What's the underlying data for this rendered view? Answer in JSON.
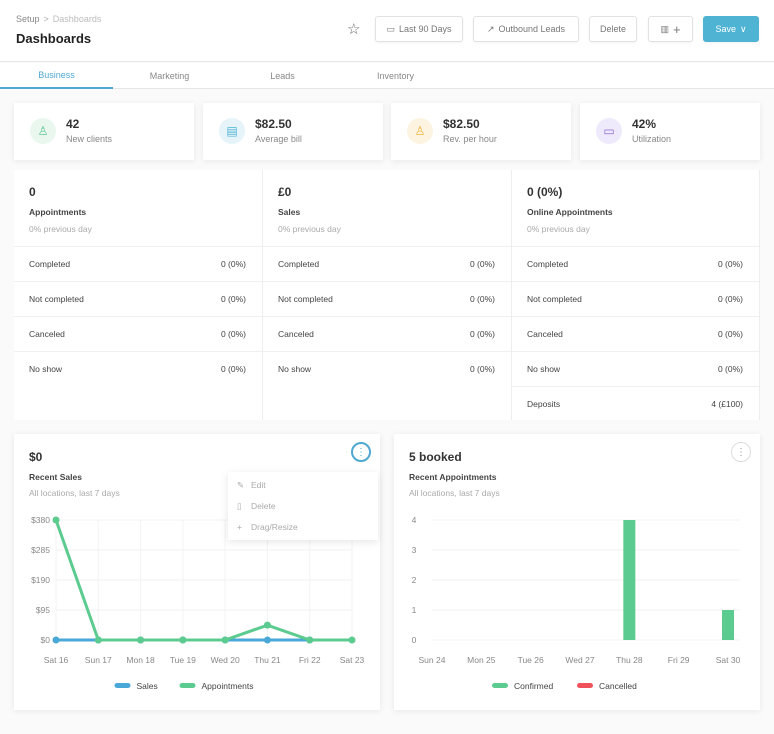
{
  "header": {
    "breadcrumb": [
      "Setup",
      "Dashboards"
    ],
    "title": "Dashboards",
    "buttons": {
      "date_range": "Last 90 Days",
      "outbound": "Outbound Leads",
      "delete": "Delete",
      "save": "Save"
    }
  },
  "tabs": [
    {
      "label": "Business",
      "active": true
    },
    {
      "label": "Marketing"
    },
    {
      "label": "Leads"
    },
    {
      "label": "Inventory"
    }
  ],
  "stats": [
    {
      "value": "42",
      "label": "New clients",
      "icon": "users-icon",
      "color": "#5cc68f",
      "bg": "#e9f7ef"
    },
    {
      "value": "$82.50",
      "label": "Average bill",
      "icon": "receipt-icon",
      "color": "#4fb3d3",
      "bg": "#e6f4fa"
    },
    {
      "value": "$82.50",
      "label": "Rev. per hour",
      "icon": "users-icon",
      "color": "#f0b43c",
      "bg": "#fdf3e1"
    },
    {
      "value": "42%",
      "label": "Utilization",
      "icon": "folder-icon",
      "color": "#8a6fd6",
      "bg": "#efeafb"
    }
  ],
  "summary": [
    {
      "value": "0",
      "label": "Appointments",
      "sub": "0% previous day",
      "rows": [
        [
          "Completed",
          "0 (0%)"
        ],
        [
          "Not completed",
          "0 (0%)"
        ],
        [
          "Canceled",
          "0 (0%)"
        ],
        [
          "No show",
          "0 (0%)"
        ]
      ]
    },
    {
      "value": "£0",
      "label": "Sales",
      "sub": "0% previous day",
      "rows": [
        [
          "Completed",
          "0 (0%)"
        ],
        [
          "Not completed",
          "0 (0%)"
        ],
        [
          "Canceled",
          "0 (0%)"
        ],
        [
          "No show",
          "0 (0%)"
        ]
      ]
    },
    {
      "value": "0 (0%)",
      "label": "Online Appointments",
      "sub": "0% previous day",
      "rows": [
        [
          "Completed",
          "0 (0%)"
        ],
        [
          "Not completed",
          "0 (0%)"
        ],
        [
          "Canceled",
          "0 (0%)"
        ],
        [
          "No show",
          "0 (0%)"
        ],
        [
          "Deposits",
          "4 (£100)"
        ]
      ]
    }
  ],
  "menu": {
    "edit": "Edit",
    "delete": "Delete",
    "drag": "Drag/Resize"
  },
  "chart_data": [
    {
      "type": "line",
      "title": "$0",
      "subtitle": "Recent Sales",
      "note": "All locations, last 7 days",
      "categories": [
        "Sat 16",
        "Sun 17",
        "Mon 18",
        "Tue 19",
        "Wed 20",
        "Thu 21",
        "Fri 22",
        "Sat 23"
      ],
      "yticks": [
        "$0",
        "$95",
        "$190",
        "$285",
        "$380"
      ],
      "ylim": [
        0,
        380
      ],
      "grid": true,
      "legend": "bottom",
      "series": [
        {
          "name": "Sales",
          "color": "#4aa8d8",
          "values": [
            0,
            0,
            0,
            0,
            0,
            0,
            0,
            null
          ]
        },
        {
          "name": "Appointments",
          "color": "#5ccb8f",
          "values": [
            380,
            0,
            0,
            0,
            0,
            47,
            0,
            0
          ]
        }
      ]
    },
    {
      "type": "bar",
      "title": "5 booked",
      "subtitle": "Recent Appointments",
      "note": "All locations, last 7 days",
      "categories": [
        "Sun 24",
        "Mon 25",
        "Tue 26",
        "Wed 27",
        "Thu 28",
        "Fri 29",
        "Sat 30"
      ],
      "yticks": [
        "0",
        "1",
        "2",
        "3",
        "4"
      ],
      "ylim": [
        0,
        4
      ],
      "grid": true,
      "legend": "bottom",
      "series": [
        {
          "name": "Confirmed",
          "color": "#5ccb8f",
          "values": [
            0,
            0,
            0,
            0,
            4,
            0,
            1
          ]
        },
        {
          "name": "Cancelled",
          "color": "#f0525a",
          "values": [
            0,
            0,
            0,
            0,
            0,
            0,
            0
          ]
        }
      ]
    }
  ]
}
